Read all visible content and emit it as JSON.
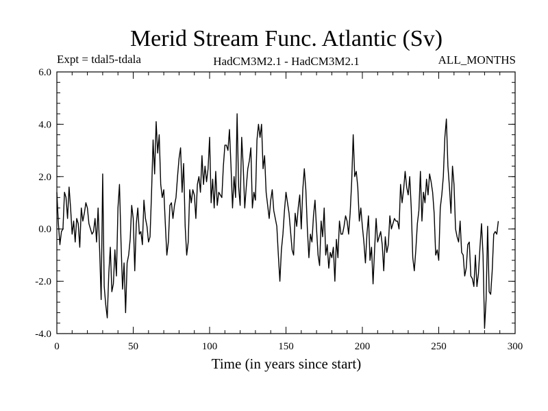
{
  "chart_data": {
    "type": "line",
    "title": "Merid Stream Func. Atlantic (Sv)",
    "header_left": "Expt = tdal5-tdala",
    "header_center": "HadCM3M2.1 - HadCM3M2.1",
    "header_right": "ALL_MONTHS",
    "xlabel": "Time (in years since start)",
    "ylabel": "",
    "xlim": [
      0,
      300
    ],
    "ylim": [
      -4.0,
      6.0
    ],
    "x_ticks": [
      0,
      50,
      100,
      150,
      200,
      250,
      300
    ],
    "x_tick_labels": [
      "0",
      "50",
      "100",
      "150",
      "200",
      "250",
      "300"
    ],
    "y_ticks": [
      -4.0,
      -2.0,
      0.0,
      2.0,
      4.0,
      6.0
    ],
    "y_tick_labels": [
      "-4.0",
      "-2.0",
      "0.0",
      "2.0",
      "4.0",
      "6.0"
    ],
    "x_minor_step": 10,
    "y_minor_step": 0.4,
    "grid": false,
    "series": [
      {
        "name": "Merid Stream Func. Atlantic",
        "x_start": 0,
        "x_step": 1,
        "values": [
          1.4,
          0.2,
          -0.6,
          -0.1,
          0.0,
          1.4,
          1.2,
          0.4,
          1.6,
          0.8,
          -0.2,
          0.3,
          -0.5,
          0.4,
          0.2,
          -0.7,
          0.8,
          0.3,
          0.6,
          1.0,
          0.8,
          0.2,
          0.0,
          -0.2,
          -0.1,
          0.4,
          -0.5,
          0.8,
          -0.8,
          -2.7,
          2.1,
          -2.2,
          -2.9,
          -3.4,
          -1.7,
          -0.7,
          -2.4,
          -2.1,
          -0.8,
          -1.8,
          0.8,
          1.7,
          -0.5,
          -2.3,
          -1.3,
          -3.2,
          -1.3,
          -1.0,
          -0.4,
          0.9,
          0.4,
          -1.6,
          0.2,
          0.8,
          -0.2,
          -0.1,
          -0.6,
          1.1,
          0.4,
          0.1,
          -0.5,
          -0.3,
          1.4,
          3.4,
          2.1,
          4.1,
          2.9,
          3.6,
          1.7,
          1.2,
          1.5,
          0.2,
          -1.0,
          -0.5,
          0.9,
          1.0,
          0.4,
          0.9,
          1.2,
          2.0,
          2.7,
          3.1,
          1.4,
          2.5,
          0.1,
          -1.0,
          -0.5,
          1.5,
          1.0,
          1.5,
          1.3,
          0.4,
          1.7,
          2.0,
          1.4,
          2.8,
          1.7,
          2.4,
          1.8,
          2.3,
          3.5,
          1.0,
          1.9,
          0.8,
          2.2,
          0.9,
          1.4,
          1.3,
          1.2,
          2.4,
          3.2,
          3.2,
          3.0,
          3.8,
          2.4,
          0.8,
          2.0,
          1.2,
          4.4,
          1.6,
          0.9,
          3.5,
          2.4,
          0.8,
          1.6,
          2.3,
          2.6,
          3.1,
          0.8,
          1.4,
          1.1,
          3.4,
          4.0,
          3.5,
          4.0,
          2.3,
          2.8,
          1.4,
          0.9,
          0.4,
          1.1,
          1.5,
          0.7,
          0.4,
          0.1,
          -1.0,
          -2.0,
          -0.8,
          -0.2,
          0.7,
          1.4,
          1.0,
          0.6,
          -0.1,
          -0.8,
          -1.0,
          0.6,
          0.1,
          0.8,
          1.3,
          0.0,
          1.5,
          2.3,
          1.5,
          0.0,
          -1.1,
          -0.2,
          -0.5,
          0.5,
          1.1,
          0.0,
          -1.0,
          -1.4,
          0.3,
          -0.3,
          0.8,
          -1.0,
          -0.6,
          -1.5,
          -0.9,
          -1.1,
          -0.7,
          -2.0,
          -0.4,
          -1.1,
          0.3,
          -0.2,
          -0.2,
          0.1,
          0.5,
          0.3,
          -0.2,
          0.6,
          1.8,
          3.6,
          2.0,
          2.2,
          1.6,
          0.3,
          0.8,
          0.1,
          -0.5,
          -1.3,
          -0.2,
          0.5,
          -1.2,
          -0.7,
          -2.1,
          -0.8,
          0.4,
          -0.5,
          -0.3,
          -0.1,
          -0.6,
          -1.6,
          -0.3,
          -0.9,
          -0.6,
          0.5,
          0.0,
          0.2,
          0.4,
          0.3,
          0.3,
          0.0,
          1.7,
          1.0,
          1.5,
          2.2,
          1.6,
          1.3,
          2.0,
          0.8,
          -1.1,
          -1.6,
          -0.8,
          0.2,
          0.7,
          2.2,
          0.3,
          1.4,
          1.0,
          1.9,
          1.3,
          2.1,
          1.8,
          1.4,
          0.6,
          -1.0,
          -0.8,
          -1.2,
          0.8,
          1.3,
          2.0,
          3.5,
          4.2,
          2.4,
          1.6,
          0.6,
          2.4,
          1.7,
          0.0,
          -0.3,
          -0.5,
          0.3,
          -0.9,
          -1.0,
          -1.8,
          -1.5,
          -0.6,
          -0.5,
          -1.8,
          -1.9,
          -2.2,
          -1.0,
          -2.2,
          -1.7,
          -0.7,
          0.2,
          -1.0,
          -3.8,
          -2.7,
          0.1,
          -2.4,
          -2.5,
          -1.6,
          -0.2,
          -0.1,
          -0.2,
          0.3
        ]
      }
    ]
  }
}
